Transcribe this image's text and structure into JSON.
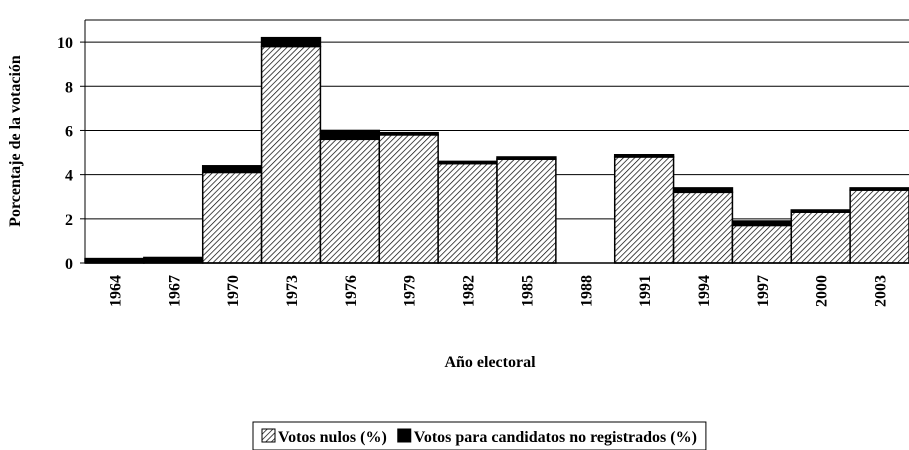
{
  "chart_data": {
    "type": "stacked-bar",
    "x_label": "Año electoral",
    "y_label": "Porcentaje de la votación",
    "categories": [
      "1964",
      "1967",
      "1970",
      "1973",
      "1976",
      "1979",
      "1982",
      "1985",
      "1988",
      "1991",
      "1994",
      "1997",
      "2000",
      "2003"
    ],
    "series": [
      {
        "name": "Votos nulos (%)",
        "color": "#000000",
        "pattern": "hatch",
        "values": [
          0,
          0,
          4.1,
          9.8,
          5.6,
          5.8,
          4.5,
          4.7,
          null,
          4.8,
          3.2,
          1.7,
          2.3,
          3.3
        ]
      },
      {
        "name": "Votos para candidatos no registrados (%)",
        "color": "#000000",
        "pattern": "solid",
        "values": [
          0.2,
          0.25,
          0.3,
          0.4,
          0.4,
          0.1,
          0.1,
          0.1,
          null,
          0.1,
          0.2,
          0.2,
          0.1,
          0.1
        ]
      }
    ],
    "ylim": [
      0,
      11
    ],
    "yticks": [
      0,
      2,
      4,
      6,
      8,
      10
    ],
    "grid": true
  }
}
